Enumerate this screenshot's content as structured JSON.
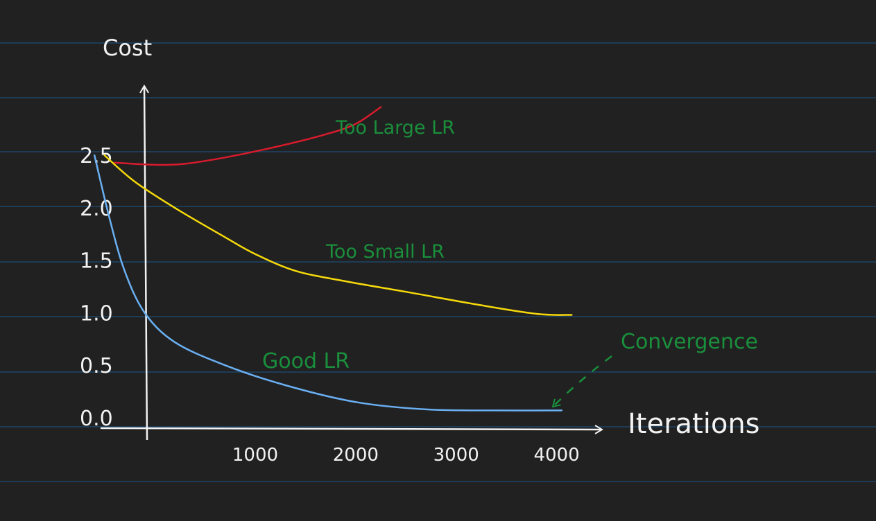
{
  "colors": {
    "background": "#212121",
    "ruled_lines": "#1e4569",
    "axes": "#f2f2f2",
    "good_lr": "#6ab0f3",
    "too_small_lr": "#f5d90a",
    "too_large_lr": "#d81b2c",
    "annotation": "#1a8f3c"
  },
  "chart_data": {
    "type": "line",
    "xlabel": "Iterations",
    "ylabel": "Cost",
    "xlim": [
      -850,
      4500
    ],
    "ylim": [
      0,
      3.0
    ],
    "x_ticks": [
      "1000",
      "2000",
      "3000",
      "4000"
    ],
    "y_ticks": [
      "0.0",
      "0.5",
      "1.0",
      "1.5",
      "2.0",
      "2.5"
    ],
    "grid": false,
    "legend": "none",
    "series": [
      {
        "name": "Too Large LR",
        "x": [
          -400,
          0,
          300,
          700,
          1200,
          1700,
          2000,
          2250
        ],
        "y": [
          2.43,
          2.41,
          2.42,
          2.48,
          2.58,
          2.7,
          2.8,
          2.96
        ]
      },
      {
        "name": "Too Small LR",
        "x": [
          -500,
          -200,
          200,
          700,
          1000,
          1400,
          1900,
          2500,
          3200,
          3800,
          4150
        ],
        "y": [
          2.5,
          2.25,
          2.0,
          1.72,
          1.56,
          1.4,
          1.3,
          1.2,
          1.08,
          0.99,
          0.98
        ]
      },
      {
        "name": "Good LR",
        "x": [
          -600,
          -450,
          -300,
          -100,
          200,
          700,
          1300,
          2000,
          2700,
          3400,
          4050
        ],
        "y": [
          2.5,
          1.9,
          1.4,
          1.0,
          0.72,
          0.5,
          0.31,
          0.15,
          0.08,
          0.07,
          0.07
        ]
      }
    ],
    "annotations": [
      {
        "text": "Too Large LR",
        "series": "Too Large LR"
      },
      {
        "text": "Too Small LR",
        "series": "Too Small LR"
      },
      {
        "text": "Good LR",
        "series": "Good LR"
      },
      {
        "text": "Convergence",
        "points_to": [
          4000,
          0.1
        ]
      }
    ]
  }
}
